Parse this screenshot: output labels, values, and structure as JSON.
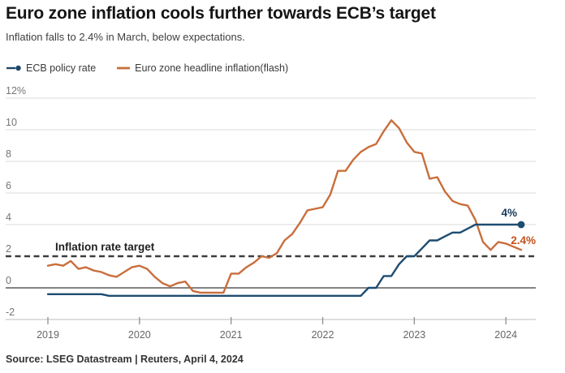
{
  "chart_data": {
    "type": "line",
    "title": "Euro zone inflation cools further towards ECB’s target",
    "subtitle": "Inflation falls to 2.4% in March, below expectations.",
    "source_note": "Source: LSEG Datastream | Reuters, April 4, 2024",
    "legend_position": "top-left",
    "grid": "horizontal",
    "ylim": [
      -2,
      12
    ],
    "y_ticks": [
      {
        "value": 12,
        "label": "12%"
      },
      {
        "value": 10,
        "label": "10"
      },
      {
        "value": 8,
        "label": "8"
      },
      {
        "value": 6,
        "label": "6"
      },
      {
        "value": 4,
        "label": "4"
      },
      {
        "value": 2,
        "label": "2"
      },
      {
        "value": 0,
        "label": "0"
      },
      {
        "value": -2,
        "label": "-2"
      }
    ],
    "x_tick_labels": [
      "2019",
      "2020",
      "2021",
      "2022",
      "2023",
      "2024"
    ],
    "x_freq": "monthly",
    "x": [
      "2019-01",
      "2019-02",
      "2019-03",
      "2019-04",
      "2019-05",
      "2019-06",
      "2019-07",
      "2019-08",
      "2019-09",
      "2019-10",
      "2019-11",
      "2019-12",
      "2020-01",
      "2020-02",
      "2020-03",
      "2020-04",
      "2020-05",
      "2020-06",
      "2020-07",
      "2020-08",
      "2020-09",
      "2020-10",
      "2020-11",
      "2020-12",
      "2021-01",
      "2021-02",
      "2021-03",
      "2021-04",
      "2021-05",
      "2021-06",
      "2021-07",
      "2021-08",
      "2021-09",
      "2021-10",
      "2021-11",
      "2021-12",
      "2022-01",
      "2022-02",
      "2022-03",
      "2022-04",
      "2022-05",
      "2022-06",
      "2022-07",
      "2022-08",
      "2022-09",
      "2022-10",
      "2022-11",
      "2022-12",
      "2023-01",
      "2023-02",
      "2023-03",
      "2023-04",
      "2023-05",
      "2023-06",
      "2023-07",
      "2023-08",
      "2023-09",
      "2023-10",
      "2023-11",
      "2023-12",
      "2024-01",
      "2024-02",
      "2024-03"
    ],
    "series": [
      {
        "name": "ECB policy rate",
        "color": "#1e4c70",
        "end_marker": true,
        "end_label": "4%",
        "end_label_color": "#16395c",
        "values": [
          -0.4,
          -0.4,
          -0.4,
          -0.4,
          -0.4,
          -0.4,
          -0.4,
          -0.4,
          -0.5,
          -0.5,
          -0.5,
          -0.5,
          -0.5,
          -0.5,
          -0.5,
          -0.5,
          -0.5,
          -0.5,
          -0.5,
          -0.5,
          -0.5,
          -0.5,
          -0.5,
          -0.5,
          -0.5,
          -0.5,
          -0.5,
          -0.5,
          -0.5,
          -0.5,
          -0.5,
          -0.5,
          -0.5,
          -0.5,
          -0.5,
          -0.5,
          -0.5,
          -0.5,
          -0.5,
          -0.5,
          -0.5,
          -0.5,
          0.0,
          0.0,
          0.75,
          0.75,
          1.5,
          2.0,
          2.0,
          2.5,
          3.0,
          3.0,
          3.25,
          3.5,
          3.5,
          3.75,
          4.0,
          4.0,
          4.0,
          4.0,
          4.0,
          4.0,
          4.0
        ]
      },
      {
        "name": "Euro zone headline inflation(flash)",
        "color": "#c96e3c",
        "end_marker": false,
        "end_label": "2.4%",
        "end_label_color": "#c4511d",
        "values": [
          1.4,
          1.5,
          1.4,
          1.7,
          1.2,
          1.3,
          1.1,
          1.0,
          0.8,
          0.7,
          1.0,
          1.3,
          1.4,
          1.2,
          0.7,
          0.3,
          0.1,
          0.3,
          0.4,
          -0.2,
          -0.3,
          -0.3,
          -0.3,
          -0.3,
          0.9,
          0.9,
          1.3,
          1.6,
          2.0,
          1.9,
          2.2,
          3.0,
          3.4,
          4.1,
          4.9,
          5.0,
          5.1,
          5.9,
          7.4,
          7.4,
          8.1,
          8.6,
          8.9,
          9.1,
          9.9,
          10.6,
          10.1,
          9.2,
          8.6,
          8.5,
          6.9,
          7.0,
          6.1,
          5.5,
          5.3,
          5.2,
          4.3,
          2.9,
          2.4,
          2.9,
          2.8,
          2.6,
          2.4
        ]
      }
    ],
    "target_line": {
      "value": 2,
      "label": "Inflation rate target",
      "style": "dashed",
      "color": "#3d3d3d"
    },
    "colors": {
      "grid": "#dbdbdb",
      "zero_line": "#5a5a5a",
      "axis": "#bdbdbd",
      "tick": "#8f8f8f",
      "tick_label": "#666666",
      "y_label": "#757575",
      "target_label": "#1f1f1f"
    }
  }
}
